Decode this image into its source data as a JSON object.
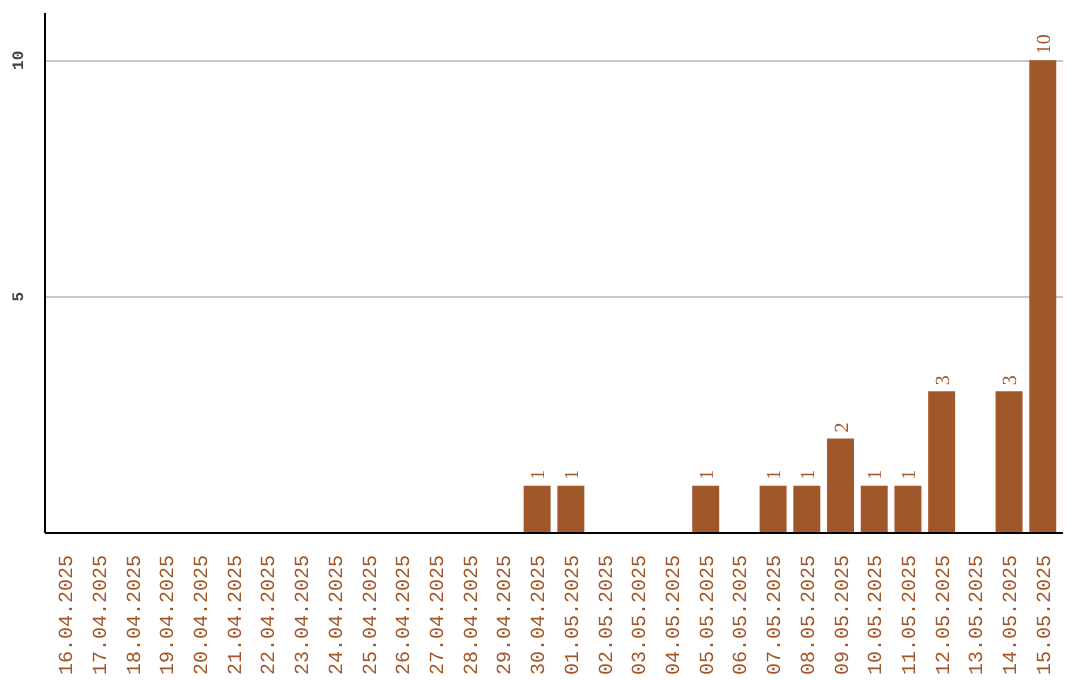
{
  "chart_data": {
    "type": "bar",
    "categories": [
      "16.04.2025",
      "17.04.2025",
      "18.04.2025",
      "19.04.2025",
      "20.04.2025",
      "21.04.2025",
      "22.04.2025",
      "23.04.2025",
      "24.04.2025",
      "25.04.2025",
      "26.04.2025",
      "27.04.2025",
      "28.04.2025",
      "29.04.2025",
      "30.04.2025",
      "01.05.2025",
      "02.05.2025",
      "03.05.2025",
      "04.05.2025",
      "05.05.2025",
      "06.05.2025",
      "07.05.2025",
      "08.05.2025",
      "09.05.2025",
      "10.05.2025",
      "11.05.2025",
      "12.05.2025",
      "13.05.2025",
      "14.05.2025",
      "15.05.2025"
    ],
    "values": [
      0,
      0,
      0,
      0,
      0,
      0,
      0,
      0,
      0,
      0,
      0,
      0,
      0,
      0,
      1,
      1,
      0,
      0,
      0,
      1,
      0,
      1,
      1,
      2,
      1,
      1,
      3,
      0,
      3,
      10
    ],
    "value_labels": [
      null,
      null,
      null,
      null,
      null,
      null,
      null,
      null,
      null,
      null,
      null,
      null,
      null,
      null,
      "1",
      "1",
      null,
      null,
      null,
      "1",
      null,
      "1",
      "1",
      "2",
      "1",
      "1",
      "3",
      null,
      "3",
      "10"
    ],
    "color": "#a0572a",
    "ylim": [
      0,
      11
    ],
    "yticks": [
      5,
      10
    ],
    "grid": "y"
  }
}
